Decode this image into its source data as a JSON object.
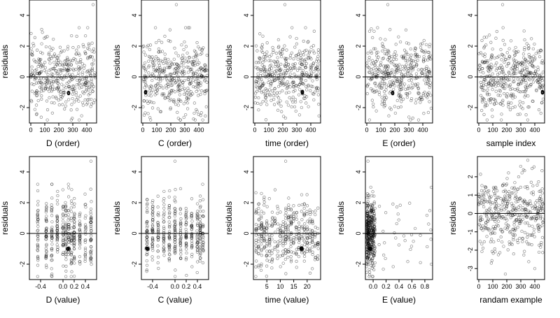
{
  "chart_data": [
    {
      "id": "p1",
      "type": "scatter",
      "xlabel": "D (order)",
      "ylabel": "residuals",
      "xlim": [
        -10,
        470
      ],
      "ylim": [
        -3,
        5
      ],
      "xticks": [
        0,
        100,
        200,
        300,
        400
      ],
      "xtick_labels": [
        "0",
        "100",
        "200",
        "300",
        "400"
      ],
      "yticks": [
        -2,
        0,
        2,
        4
      ],
      "ytick_labels": [
        "-2",
        "0",
        "2",
        "4"
      ],
      "hline": 0,
      "grid": false,
      "gen": {
        "n": 420,
        "xkind": "uniform",
        "xmin": 0,
        "xmax": 460,
        "seed": 11,
        "clusters": [
          [
            270,
            -1.05,
            0.06,
            6
          ]
        ],
        "outliers": [
          [
            445,
            4.7
          ]
        ]
      }
    },
    {
      "id": "p2",
      "type": "scatter",
      "xlabel": "C (order)",
      "ylabel": "residuals",
      "xlim": [
        -10,
        470
      ],
      "ylim": [
        -3,
        5
      ],
      "xticks": [
        0,
        100,
        200,
        300,
        400
      ],
      "xtick_labels": [
        "0",
        "100",
        "200",
        "300",
        "400"
      ],
      "yticks": [
        -2,
        0,
        2,
        4
      ],
      "ytick_labels": [
        "-2",
        "0",
        "2",
        "4"
      ],
      "hline": 0,
      "grid": false,
      "gen": {
        "n": 420,
        "xkind": "uniform",
        "xmin": 0,
        "xmax": 460,
        "seed": 22,
        "clusters": [
          [
            20,
            -1.0,
            0.06,
            6
          ]
        ],
        "outliers": [
          [
            240,
            4.7
          ]
        ]
      }
    },
    {
      "id": "p3",
      "type": "scatter",
      "xlabel": "time (order)",
      "ylabel": "residuals",
      "xlim": [
        -10,
        470
      ],
      "ylim": [
        -3,
        5
      ],
      "xticks": [
        0,
        100,
        200,
        300,
        400
      ],
      "xtick_labels": [
        "0",
        "100",
        "200",
        "300",
        "400"
      ],
      "yticks": [
        -2,
        0,
        2,
        4
      ],
      "ytick_labels": [
        "-2",
        "0",
        "2",
        "4"
      ],
      "hline": 0,
      "grid": false,
      "gen": {
        "n": 420,
        "xkind": "uniform",
        "xmin": 0,
        "xmax": 460,
        "seed": 33,
        "clusters": [
          [
            340,
            -1.0,
            0.06,
            6
          ]
        ],
        "outliers": [
          [
            215,
            4.7
          ]
        ]
      }
    },
    {
      "id": "p4",
      "type": "scatter",
      "xlabel": "E (order)",
      "ylabel": "residuals",
      "xlim": [
        -10,
        470
      ],
      "ylim": [
        -3,
        5
      ],
      "xticks": [
        0,
        100,
        200,
        300,
        400
      ],
      "xtick_labels": [
        "0",
        "100",
        "200",
        "300",
        "400"
      ],
      "yticks": [
        -2,
        0,
        2,
        4
      ],
      "ytick_labels": [
        "-2",
        "0",
        "2",
        "4"
      ],
      "hline": 0,
      "grid": false,
      "gen": {
        "n": 420,
        "xkind": "uniform",
        "xmin": 0,
        "xmax": 460,
        "seed": 44,
        "clusters": [
          [
            185,
            -1.05,
            0.06,
            6
          ]
        ],
        "outliers": [
          [
            150,
            4.7
          ]
        ]
      }
    },
    {
      "id": "p5",
      "type": "scatter",
      "xlabel": "sample index",
      "ylabel": "residuals",
      "xlim": [
        -10,
        470
      ],
      "ylim": [
        -3,
        5
      ],
      "xticks": [
        0,
        100,
        200,
        300,
        400
      ],
      "xtick_labels": [
        "0",
        "100",
        "200",
        "300",
        "400"
      ],
      "yticks": [
        -2,
        0,
        2,
        4
      ],
      "ytick_labels": [
        "-2",
        "0",
        "2",
        "4"
      ],
      "hline": 0,
      "grid": false,
      "gen": {
        "n": 420,
        "xkind": "uniform",
        "xmin": 0,
        "xmax": 460,
        "seed": 55,
        "clusters": [
          [
            455,
            -1.0,
            0.06,
            6
          ]
        ],
        "outliers": [
          [
            170,
            4.7
          ]
        ]
      }
    },
    {
      "id": "p6",
      "type": "scatter",
      "xlabel": "D (value)",
      "ylabel": "residuals",
      "xlim": [
        -0.6,
        0.6
      ],
      "ylim": [
        -3,
        5
      ],
      "xticks": [
        -0.4,
        0.0,
        0.2,
        0.4
      ],
      "xtick_labels": [
        "-0.4",
        "0.0",
        "0.2",
        "0.4"
      ],
      "yticks": [
        -2,
        0,
        2,
        4
      ],
      "ytick_labels": [
        "-2",
        "0",
        "2",
        "4"
      ],
      "hline": 0,
      "grid": false,
      "gen": {
        "n": 420,
        "xkind": "columns",
        "xmin": -0.55,
        "xmax": 0.55,
        "seed": 66,
        "columns": [
          -0.45,
          -0.3,
          -0.2,
          -0.1,
          0.0,
          0.05,
          0.1,
          0.15,
          0.2,
          0.3,
          0.4,
          0.5
        ],
        "clusters": [
          [
            0.1,
            -1.0,
            0.03,
            6
          ]
        ],
        "outliers": [
          [
            0.5,
            4.7
          ]
        ]
      }
    },
    {
      "id": "p7",
      "type": "scatter",
      "xlabel": "C (value)",
      "ylabel": "residuals",
      "xlim": [
        -0.6,
        0.6
      ],
      "ylim": [
        -3,
        5
      ],
      "xticks": [
        -0.4,
        0.0,
        0.2,
        0.4
      ],
      "xtick_labels": [
        "-0.4",
        "0.0",
        "0.2",
        "0.4"
      ],
      "yticks": [
        -2,
        0,
        2,
        4
      ],
      "ytick_labels": [
        "-2",
        "0",
        "2",
        "4"
      ],
      "hline": 0,
      "grid": false,
      "gen": {
        "n": 420,
        "xkind": "columns",
        "xmin": -0.55,
        "xmax": 0.55,
        "seed": 77,
        "columns": [
          -0.5,
          -0.4,
          -0.3,
          -0.2,
          -0.1,
          0.0,
          0.1,
          0.2,
          0.3,
          0.4,
          0.45,
          0.5
        ],
        "clusters": [
          [
            -0.5,
            -1.0,
            0.03,
            6
          ]
        ],
        "outliers": [
          [
            0.0,
            4.7
          ]
        ]
      }
    },
    {
      "id": "p8",
      "type": "scatter",
      "xlabel": "time (value)",
      "ylabel": "residuals",
      "xlim": [
        0,
        25
      ],
      "ylim": [
        -3,
        5
      ],
      "xticks": [
        5,
        10,
        15,
        20
      ],
      "xtick_labels": [
        "5",
        "10",
        "15",
        "20"
      ],
      "yticks": [
        -2,
        0,
        2,
        4
      ],
      "ytick_labels": [
        "-2",
        "0",
        "2",
        "4"
      ],
      "hline": 0,
      "grid": false,
      "gen": {
        "n": 420,
        "xkind": "columns",
        "xmin": 1,
        "xmax": 24,
        "seed": 88,
        "columns": [
          1,
          2,
          3,
          4,
          5,
          6,
          7,
          8,
          9,
          10,
          11,
          12,
          13,
          14,
          15,
          16,
          17,
          18,
          19,
          20,
          21,
          22,
          23,
          24
        ],
        "clusters": [
          [
            18,
            -1.0,
            0.5,
            6
          ]
        ],
        "outliers": [
          [
            12,
            4.7
          ]
        ]
      }
    },
    {
      "id": "p9",
      "type": "scatter",
      "xlabel": "E (value)",
      "ylabel": "residuals",
      "xlim": [
        -0.12,
        0.92
      ],
      "ylim": [
        -3,
        5
      ],
      "xticks": [
        0.0,
        0.2,
        0.4,
        0.6,
        0.8
      ],
      "xtick_labels": [
        "0.0",
        "0.2",
        "0.4",
        "0.6",
        "0.8"
      ],
      "yticks": [
        -2,
        0,
        2,
        4
      ],
      "ytick_labels": [
        "-2",
        "0",
        "2",
        "4"
      ],
      "hline": 0,
      "grid": false,
      "gen": {
        "n": 420,
        "xkind": "skewed",
        "xmin": -0.1,
        "xmax": 0.9,
        "seed": 99,
        "clusters": [
          [
            -0.05,
            -1.0,
            0.02,
            6
          ]
        ],
        "outliers": [
          [
            -0.08,
            4.7
          ],
          [
            0.9,
            3.0
          ],
          [
            0.9,
            -2.0
          ]
        ]
      }
    },
    {
      "id": "p10",
      "type": "scatter",
      "xlabel": "randam example",
      "ylabel": "residuals",
      "xlim": [
        -10,
        470
      ],
      "ylim": [
        -3.6,
        3.1
      ],
      "xticks": [
        0,
        100,
        200,
        300,
        400
      ],
      "xtick_labels": [
        "0",
        "100",
        "200",
        "300",
        "400"
      ],
      "yticks": [
        -3,
        -2,
        -1,
        0,
        1,
        2
      ],
      "ytick_labels": [
        "-3",
        "-2",
        "-1",
        "0",
        "1",
        "2"
      ],
      "hline": 0,
      "grid": false,
      "gen": {
        "n": 420,
        "xkind": "uniform",
        "xmin": 0,
        "xmax": 460,
        "seed": 111,
        "sd": 1.0,
        "clusters": [],
        "outliers": [
          [
            190,
            -3.3
          ],
          [
            400,
            -3.0
          ],
          [
            350,
            2.9
          ]
        ]
      }
    }
  ]
}
